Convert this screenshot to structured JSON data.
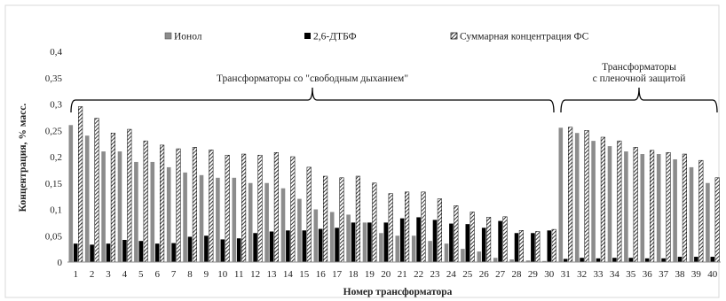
{
  "chart_data": {
    "type": "bar",
    "ylabel": "Концентрация, % масс.",
    "xlabel": "Номер трансформатора",
    "ylim": [
      0,
      0.4
    ],
    "yticks": [
      "0",
      "0,05",
      "0,1",
      "0,15",
      "0,2",
      "0,25",
      "0,3",
      "0,35",
      "0,4"
    ],
    "grid": false,
    "legend_position": "top",
    "categories": [
      "1",
      "2",
      "3",
      "4",
      "5",
      "6",
      "7",
      "8",
      "9",
      "10",
      "11",
      "12",
      "13",
      "14",
      "15",
      "16",
      "17",
      "18",
      "19",
      "20",
      "21",
      "22",
      "23",
      "24",
      "25",
      "26",
      "27",
      "28",
      "29",
      "30",
      "31",
      "32",
      "33",
      "34",
      "35",
      "36",
      "37",
      "38",
      "39",
      "40"
    ],
    "series": [
      {
        "name": "Ионол",
        "style": "solid-gray",
        "color": "#8c8c8c",
        "values": [
          0.26,
          0.24,
          0.21,
          0.21,
          0.19,
          0.19,
          0.18,
          0.17,
          0.165,
          0.16,
          0.16,
          0.15,
          0.15,
          0.14,
          0.12,
          0.1,
          0.095,
          0.09,
          0.075,
          0.055,
          0.05,
          0.05,
          0.04,
          0.035,
          0.025,
          0.02,
          0.008,
          0.005,
          0.003,
          0.002,
          0.255,
          0.245,
          0.23,
          0.22,
          0.21,
          0.205,
          0.205,
          0.195,
          0.18,
          0.15
        ]
      },
      {
        "name": "2,6-ДТБФ",
        "style": "solid-black",
        "color": "#000000",
        "values": [
          0.035,
          0.033,
          0.035,
          0.042,
          0.04,
          0.035,
          0.036,
          0.048,
          0.05,
          0.043,
          0.045,
          0.055,
          0.058,
          0.06,
          0.06,
          0.063,
          0.065,
          0.075,
          0.075,
          0.075,
          0.083,
          0.085,
          0.08,
          0.073,
          0.072,
          0.065,
          0.078,
          0.055,
          0.055,
          0.06,
          0.006,
          0.008,
          0.007,
          0.008,
          0.008,
          0.007,
          0.007,
          0.01,
          0.01,
          0.01
        ]
      },
      {
        "name": "Суммарная концентрация ФС",
        "style": "hatched",
        "color": "#000000",
        "values": [
          0.295,
          0.273,
          0.245,
          0.252,
          0.23,
          0.222,
          0.215,
          0.218,
          0.213,
          0.203,
          0.205,
          0.203,
          0.208,
          0.2,
          0.18,
          0.163,
          0.16,
          0.163,
          0.15,
          0.13,
          0.133,
          0.133,
          0.12,
          0.107,
          0.095,
          0.085,
          0.086,
          0.06,
          0.058,
          0.062,
          0.256,
          0.25,
          0.237,
          0.23,
          0.218,
          0.212,
          0.208,
          0.205,
          0.193,
          0.16
        ]
      }
    ],
    "group_annotations": [
      {
        "label_lines": [
          "Трансформаторы со \"свободным дыханием\""
        ],
        "from": 1,
        "to": 30
      },
      {
        "label_lines": [
          "Трансформаторы",
          "с пленочной защитой"
        ],
        "from": 31,
        "to": 40
      }
    ]
  }
}
